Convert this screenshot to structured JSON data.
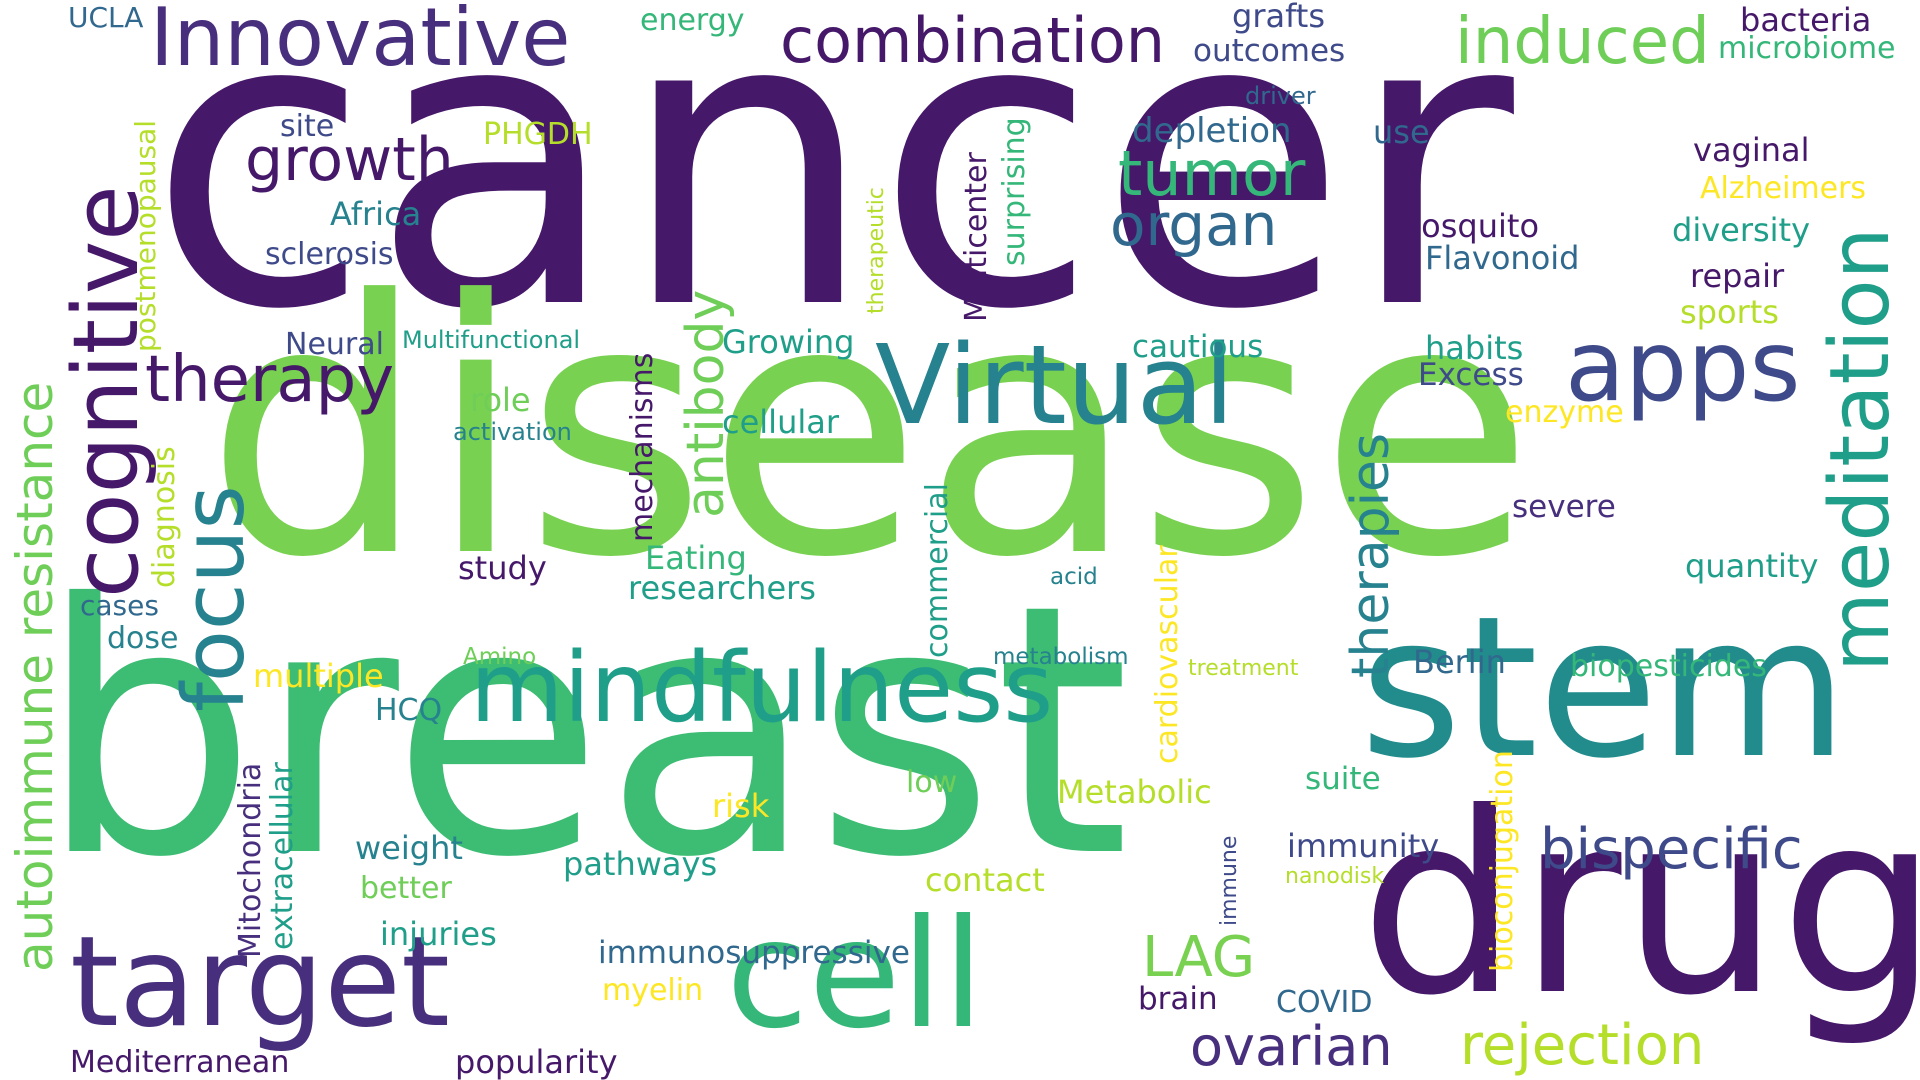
{
  "palette": {
    "dark_purple": "#46186a",
    "purple": "#472f7d",
    "indigo": "#3e4a89",
    "blue": "#31688e",
    "teal": "#26828e",
    "sea_green": "#1f9e89",
    "green": "#35b779",
    "light_green": "#6ece58",
    "lime": "#b5de2b",
    "yellow": "#fde725",
    "background": "#ffffff"
  },
  "words": {
    "cancer": "cancer",
    "disease": "disease",
    "breast": "breast",
    "stem": "stem",
    "drug": "drug",
    "cell": "cell",
    "target": "target",
    "mindfulness": "mindfulness",
    "virtual": "Virtual",
    "cognitive": "cognitive",
    "meditation": "meditation",
    "innovative": "Innovative",
    "combination": "combination",
    "apps": "apps",
    "focus": "focus",
    "induced": "induced",
    "therapy": "therapy",
    "growth": "growth",
    "tumor": "tumor",
    "organ": "organ",
    "autoimmune_resistance": "autoimmune resistance",
    "therapies": "therapies",
    "antibody": "antibody",
    "bispecific": "bispecific",
    "ovarian": "ovarian",
    "rejection": "rejection",
    "lag": "LAG",
    "ucla": "UCLA",
    "energy": "energy",
    "grafts": "grafts",
    "outcomes": "outcomes",
    "bacteria": "bacteria",
    "microbiome": "microbiome",
    "site": "site",
    "phgdh": "PHGDH",
    "driver": "driver",
    "depletion": "depletion",
    "use": "use",
    "vaginal": "vaginal",
    "alzheimers": "Alzheimers",
    "africa": "Africa",
    "sclerosis": "sclerosis",
    "postmenopausal": "postmenopausal",
    "therapeutic": "therapeutic",
    "multicenter": "Multicenter",
    "surprising": "surprising",
    "mosquito": "mosquito",
    "flavonoid": "Flavonoid",
    "diversity": "diversity",
    "repair": "repair",
    "sports": "sports",
    "neural": "Neural",
    "multifunctional": "Multifunctional",
    "growing": "Growing",
    "cautious": "cautious",
    "habits": "habits",
    "excess": "Excess",
    "role": "role",
    "activation": "activation",
    "mechanisms": "mechanisms",
    "cellular": "cellular",
    "enzyme": "enzyme",
    "diagnosis": "diagnosis",
    "severe": "severe",
    "study": "study",
    "eating": "Eating",
    "researchers": "researchers",
    "commercial": "commercial",
    "acid": "acid",
    "cardiovascular": "cardiovascular",
    "quantity": "quantity",
    "cases": "cases",
    "dose": "dose",
    "amino": "Amino",
    "metabolism": "metabolism",
    "treatment": "treatment",
    "berlin": "Berlin",
    "biopesticides": "biopesticides",
    "multiple": "multiple",
    "hcq": "HCQ",
    "mitochondria": "Mitochondria",
    "extracellular": "extracellular",
    "low": "low",
    "metabolic": "Metabolic",
    "suite": "suite",
    "risk": "risk",
    "bioconjugation": "bioconjugation",
    "weight": "weight",
    "better": "better",
    "pathways": "pathways",
    "contact": "contact",
    "immune": "immune",
    "immunity": "immunity",
    "nanodisk": "nanodisk",
    "injuries": "injuries",
    "immunosuppressive": "immunosuppressive",
    "myelin": "myelin",
    "brain": "brain",
    "covid": "COVID",
    "mediterranean": "Mediterranean",
    "popularity": "popularity"
  }
}
